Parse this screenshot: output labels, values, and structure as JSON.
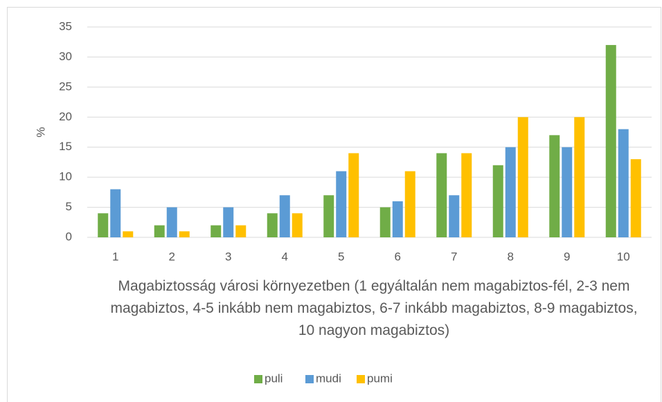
{
  "chart_data": {
    "type": "bar",
    "categories": [
      "1",
      "2",
      "3",
      "4",
      "5",
      "6",
      "7",
      "8",
      "9",
      "10"
    ],
    "series": [
      {
        "name": "puli",
        "color": "#70ad47",
        "values": [
          4,
          2,
          2,
          4,
          7,
          5,
          14,
          12,
          17,
          32
        ]
      },
      {
        "name": "mudi",
        "color": "#5b9bd5",
        "values": [
          8,
          5,
          5,
          7,
          11,
          6,
          7,
          15,
          15,
          18
        ]
      },
      {
        "name": "pumi",
        "color": "#ffc000",
        "values": [
          1,
          1,
          2,
          4,
          14,
          11,
          14,
          20,
          20,
          13
        ]
      }
    ],
    "ylim": [
      0,
      35
    ],
    "yticks": [
      0,
      5,
      10,
      15,
      20,
      25,
      30,
      35
    ],
    "grid": true,
    "y_label": "%",
    "x_label": "Magabiztosság városi környezetben (1 egyáltalán nem magabiztos-fél, 2-3 nem magabiztos, 4-5 inkább nem magabiztos, 6-7 inkább magabiztos, 8-9 magabiztos, 10 nagyon magabiztos)",
    "legend": "bottom"
  }
}
